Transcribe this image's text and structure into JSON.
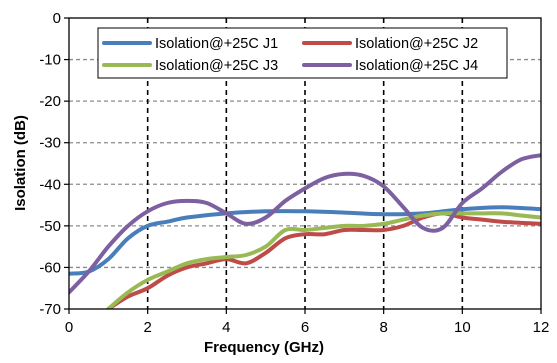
{
  "chart_data": {
    "type": "line",
    "title": "",
    "xlabel": "Frequency (GHz)",
    "ylabel": "Isolation (dB)",
    "xlim": [
      0,
      12
    ],
    "ylim": [
      -70,
      0
    ],
    "x_ticks": [
      0,
      2,
      4,
      6,
      8,
      10,
      12
    ],
    "y_ticks": [
      0,
      -10,
      -20,
      -30,
      -40,
      -50,
      -60,
      -70
    ],
    "x_tick_labels": [
      "0",
      "2",
      "4",
      "6",
      "8",
      "10",
      "12"
    ],
    "y_tick_labels": [
      "0",
      "-10",
      "-20",
      "-30",
      "-40",
      "-50",
      "-60",
      "-70"
    ],
    "grid": "dashed; horizontal grey every 10 dB, vertical black every 2 GHz",
    "legend_position": "top, inside plot, 2 columns",
    "series": [
      {
        "name": "Isolation@+25C J1",
        "color": "#4a7ebb",
        "x": [
          0,
          0.5,
          1,
          1.5,
          2,
          2.5,
          3,
          4,
          5,
          6,
          7,
          8,
          9,
          10,
          11,
          12
        ],
        "y": [
          -61.5,
          -61,
          -58,
          -53,
          -50,
          -49,
          -48,
          -47,
          -46.5,
          -46.5,
          -46.8,
          -47.2,
          -47,
          -46,
          -45.5,
          -46
        ]
      },
      {
        "name": "Isolation@+25C J2",
        "color": "#be4b48",
        "x": [
          1,
          1.5,
          2,
          2.5,
          3,
          3.5,
          4,
          4.5,
          5,
          5.5,
          6,
          6.5,
          7,
          7.5,
          8,
          8.5,
          9,
          9.5,
          10,
          10.5,
          11,
          11.5,
          12
        ],
        "y": [
          -70,
          -67,
          -65,
          -62,
          -60,
          -59,
          -58,
          -59,
          -56.5,
          -53,
          -52,
          -52,
          -51,
          -51,
          -51,
          -50,
          -48,
          -47,
          -48,
          -48.5,
          -49,
          -49.3,
          -49.5
        ]
      },
      {
        "name": "Isolation@+25C J3",
        "color": "#98b954",
        "x": [
          1,
          1.5,
          2,
          2.5,
          3,
          3.5,
          4,
          4.5,
          5,
          5.5,
          6,
          6.5,
          7,
          7.5,
          8,
          8.5,
          9,
          9.5,
          10,
          10.5,
          11,
          11.5,
          12
        ],
        "y": [
          -70,
          -66,
          -63,
          -61,
          -59,
          -58,
          -57.5,
          -57,
          -55,
          -51,
          -51,
          -50.5,
          -50,
          -50,
          -49.5,
          -48.5,
          -47.5,
          -47,
          -47,
          -47,
          -47,
          -47.5,
          -48
        ]
      },
      {
        "name": "Isolation@+25C J4",
        "color": "#7d60a0",
        "x": [
          0,
          0.5,
          1,
          1.5,
          2,
          2.5,
          3,
          3.5,
          4,
          4.5,
          5,
          5.5,
          6,
          6.5,
          7,
          7.5,
          8,
          8.5,
          9,
          9.5,
          10,
          10.5,
          11,
          11.5,
          12
        ],
        "y": [
          -66,
          -61,
          -55,
          -50,
          -46.5,
          -44.5,
          -44,
          -44.5,
          -47,
          -49.5,
          -48,
          -44,
          -41,
          -38.5,
          -37.5,
          -38,
          -40.5,
          -45.5,
          -50.5,
          -50.5,
          -44.5,
          -41,
          -37,
          -34,
          -33
        ]
      }
    ]
  }
}
